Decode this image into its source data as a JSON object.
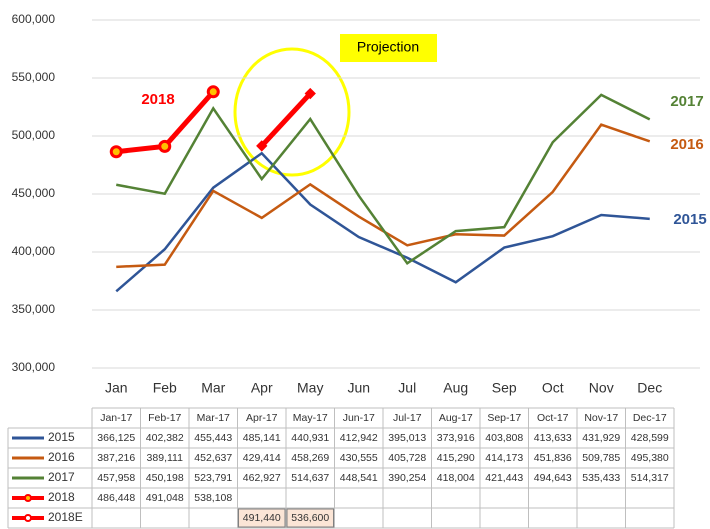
{
  "chart_data": {
    "type": "line",
    "categories": [
      "Jan",
      "Feb",
      "Mar",
      "Apr",
      "May",
      "Jun",
      "Jul",
      "Aug",
      "Sep",
      "Oct",
      "Nov",
      "Dec"
    ],
    "table_columns": [
      "Jan-17",
      "Feb-17",
      "Mar-17",
      "Apr-17",
      "May-17",
      "Jun-17",
      "Jul-17",
      "Aug-17",
      "Sep-17",
      "Oct-17",
      "Nov-17",
      "Dec-17"
    ],
    "ylim": [
      300000,
      600000
    ],
    "yticks": [
      {
        "value": 300000,
        "label": "300,000"
      },
      {
        "value": 350000,
        "label": "350,000"
      },
      {
        "value": 400000,
        "label": "400,000"
      },
      {
        "value": 450000,
        "label": "450,000"
      },
      {
        "value": 500000,
        "label": "500,000"
      },
      {
        "value": 550000,
        "label": "550,000"
      },
      {
        "value": 600000,
        "label": "600,000"
      }
    ],
    "grid": true,
    "annotation": "Projection",
    "series": [
      {
        "name": "2015",
        "color": "#2f5597",
        "values": [
          366125,
          402382,
          455443,
          485141,
          440931,
          412942,
          395013,
          373916,
          403808,
          413633,
          431929,
          428599
        ],
        "value_labels": [
          "366,125",
          "402,382",
          "455,443",
          "485,141",
          "440,931",
          "412,942",
          "395,013",
          "373,916",
          "403,808",
          "413,633",
          "431,929",
          "428,599"
        ]
      },
      {
        "name": "2016",
        "color": "#c55a11",
        "values": [
          387216,
          389111,
          452637,
          429414,
          458269,
          430555,
          405728,
          415290,
          414173,
          451836,
          509785,
          495380
        ],
        "value_labels": [
          "387,216",
          "389,111",
          "452,637",
          "429,414",
          "458,269",
          "430,555",
          "405,728",
          "415,290",
          "414,173",
          "451,836",
          "509,785",
          "495,380"
        ]
      },
      {
        "name": "2017",
        "color": "#548235",
        "values": [
          457958,
          450198,
          523791,
          462927,
          514637,
          448541,
          390254,
          418004,
          421443,
          494643,
          535433,
          514317
        ],
        "value_labels": [
          "457,958",
          "450,198",
          "523,791",
          "462,927",
          "514,637",
          "448,541",
          "390,254",
          "418,004",
          "421,443",
          "494,643",
          "535,433",
          "514,317"
        ]
      },
      {
        "name": "2018",
        "color": "#ff0000",
        "values": [
          486448,
          491048,
          538108,
          null,
          null,
          null,
          null,
          null,
          null,
          null,
          null,
          null
        ],
        "value_labels": [
          "486,448",
          "491,048",
          "538,108",
          null,
          null,
          null,
          null,
          null,
          null,
          null,
          null,
          null
        ]
      },
      {
        "name": "2018E",
        "color": "#ff0000",
        "values": [
          null,
          null,
          null,
          491440,
          536600,
          null,
          null,
          null,
          null,
          null,
          null,
          null
        ],
        "value_labels": [
          null,
          null,
          null,
          "491,440",
          "536,600",
          null,
          null,
          null,
          null,
          null,
          null,
          null
        ]
      }
    ]
  }
}
